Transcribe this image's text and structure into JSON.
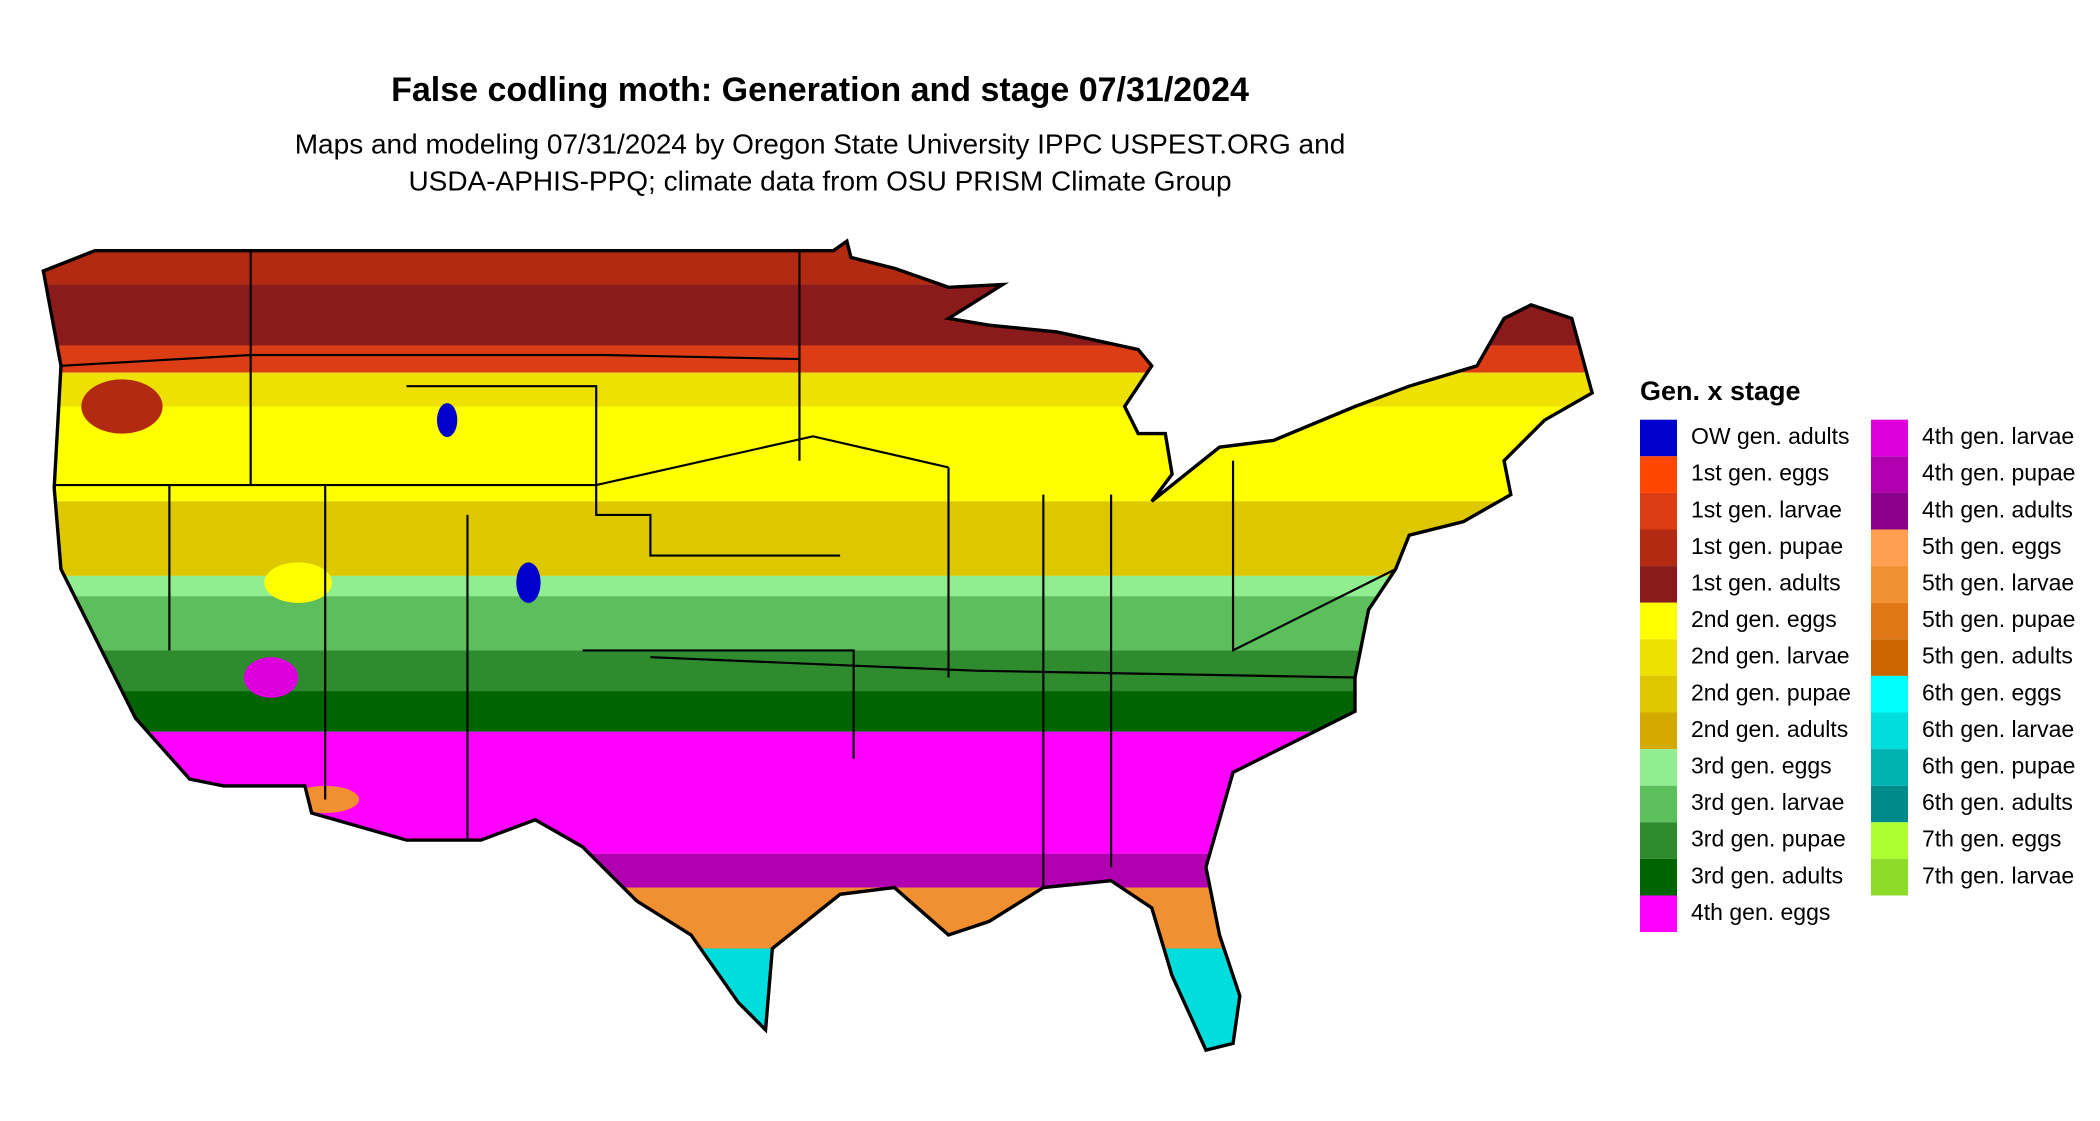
{
  "title": "False codling moth: Generation and stage 07/31/2024",
  "subtitle": [
    "Maps and modeling 07/31/2024 by Oregon State University IPPC USPEST.ORG and",
    "USDA-APHIS-PPQ; climate data from OSU PRISM Climate Group"
  ],
  "legend": {
    "title": "Gen. x stage",
    "items": [
      {
        "label": "OW gen. adults",
        "color": "#0000cd"
      },
      {
        "label": "1st gen. eggs",
        "color": "#ff4500"
      },
      {
        "label": "1st gen. larvae",
        "color": "#dd3d14"
      },
      {
        "label": "1st gen. pupae",
        "color": "#b22a12"
      },
      {
        "label": "1st gen. adults",
        "color": "#8b1a1a"
      },
      {
        "label": "2nd gen. eggs",
        "color": "#ffff00"
      },
      {
        "label": "2nd gen. larvae",
        "color": "#eee000"
      },
      {
        "label": "2nd gen. pupae",
        "color": "#ddc800"
      },
      {
        "label": "2nd gen. adults",
        "color": "#d4aa00"
      },
      {
        "label": "3rd gen. eggs",
        "color": "#90ee90"
      },
      {
        "label": "3rd gen. larvae",
        "color": "#5cbf5c"
      },
      {
        "label": "3rd gen. pupae",
        "color": "#2e8b2e"
      },
      {
        "label": "3rd gen. adults",
        "color": "#006400"
      },
      {
        "label": "4th gen. eggs",
        "color": "#ff00ff"
      },
      {
        "label": "4th gen. larvae",
        "color": "#dd00dd"
      },
      {
        "label": "4th gen. pupae",
        "color": "#b000b0"
      },
      {
        "label": "4th gen. adults",
        "color": "#8b008b"
      },
      {
        "label": "5th gen. eggs",
        "color": "#ffa050"
      },
      {
        "label": "5th gen. larvae",
        "color": "#f09030"
      },
      {
        "label": "5th gen. pupae",
        "color": "#e07818"
      },
      {
        "label": "5th gen. adults",
        "color": "#cd6600"
      },
      {
        "label": "6th gen. eggs",
        "color": "#00ffff"
      },
      {
        "label": "6th gen. larvae",
        "color": "#00dddd"
      },
      {
        "label": "6th gen. pupae",
        "color": "#00b2b2"
      },
      {
        "label": "6th gen. adults",
        "color": "#008b8b"
      },
      {
        "label": "7th gen. eggs",
        "color": "#adff2f"
      },
      {
        "label": "7th gen. larvae",
        "color": "#8ddc2a"
      }
    ]
  }
}
